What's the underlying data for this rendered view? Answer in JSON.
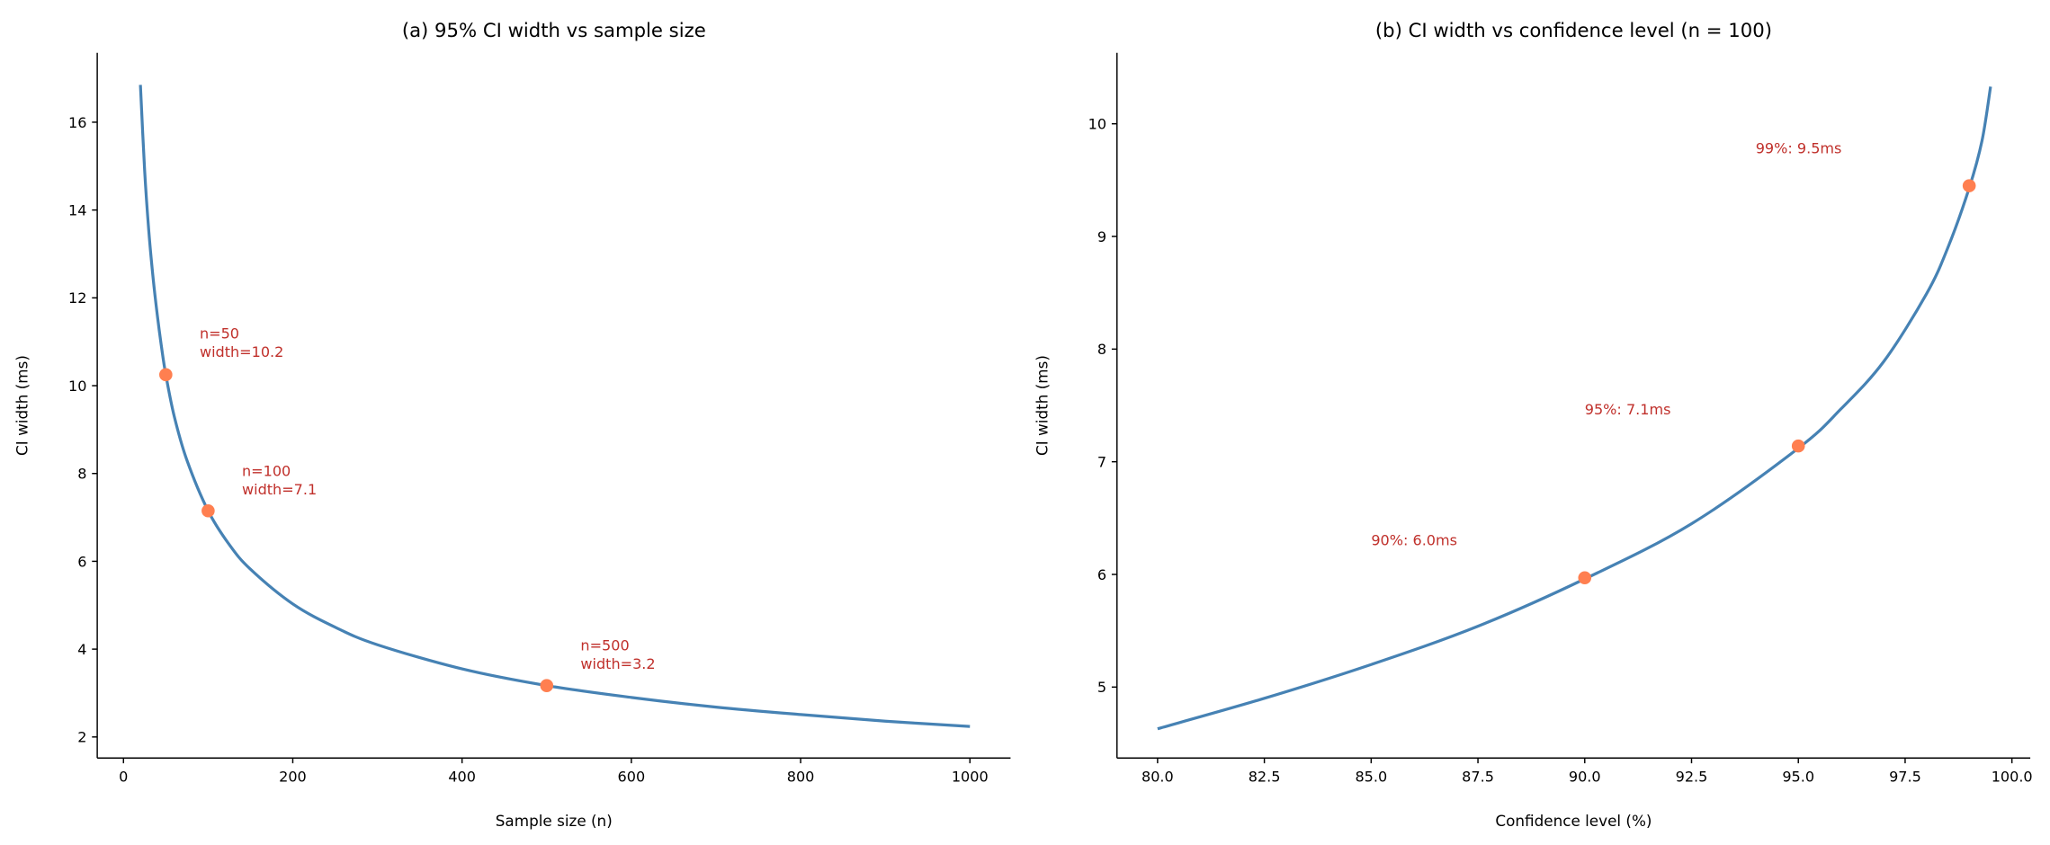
{
  "colors": {
    "line": "#4682b4",
    "marker": "#ff7f50",
    "annotation": "#c0302b"
  },
  "chart_data": [
    {
      "type": "line",
      "title": "(a) 95% CI width vs sample size",
      "xlabel": "Sample size (n)",
      "ylabel": "CI width (ms)",
      "xlim": [
        -31,
        1048
      ],
      "ylim": [
        1.52,
        17.58
      ],
      "xticks": [
        0,
        200,
        400,
        600,
        800,
        1000
      ],
      "yticks": [
        2,
        4,
        6,
        8,
        10,
        12,
        14,
        16
      ],
      "grid": false,
      "series": [
        {
          "x": [
            20,
            25,
            30,
            35,
            40,
            45,
            50,
            60,
            75,
            100,
            125,
            150,
            200,
            250,
            300,
            400,
            500,
            600,
            700,
            800,
            900,
            1000
          ],
          "y": [
            16.85,
            14.9,
            13.5,
            12.45,
            11.6,
            10.87,
            10.25,
            9.3,
            8.3,
            7.15,
            6.38,
            5.82,
            5.03,
            4.5,
            4.1,
            3.55,
            3.17,
            2.9,
            2.68,
            2.51,
            2.36,
            2.24
          ]
        }
      ],
      "points": [
        {
          "x": 50,
          "y": 10.25,
          "label": [
            "n=50",
            "width=10.2"
          ],
          "text_at": [
            90,
            10.66
          ]
        },
        {
          "x": 100,
          "y": 7.15,
          "label": [
            "n=100",
            "width=7.1"
          ],
          "text_at": [
            140,
            7.52
          ]
        },
        {
          "x": 500,
          "y": 3.17,
          "label": [
            "n=500",
            "width=3.2"
          ],
          "text_at": [
            540,
            3.55
          ]
        }
      ]
    },
    {
      "type": "line",
      "title": "(b) CI width vs confidence level (n = 100)",
      "xlabel": "Confidence level (%)",
      "ylabel": "CI width (ms)",
      "xlim": [
        79.05,
        100.43
      ],
      "ylim": [
        4.37,
        10.63
      ],
      "xticks": [
        "80.0",
        "82.5",
        "85.0",
        "87.5",
        "90.0",
        "92.5",
        "95.0",
        "97.5",
        "100.0"
      ],
      "yticks": [
        5,
        6,
        7,
        8,
        9,
        10
      ],
      "grid": false,
      "series": [
        {
          "x": [
            80,
            82.5,
            85,
            87.5,
            90,
            92.5,
            95,
            96,
            97,
            98,
            98.5,
            99,
            99.3,
            99.5
          ],
          "y": [
            4.63,
            4.9,
            5.2,
            5.54,
            5.96,
            6.45,
            7.12,
            7.47,
            7.89,
            8.49,
            8.9,
            9.43,
            9.85,
            10.33
          ]
        }
      ],
      "points": [
        {
          "x": 90,
          "y": 5.97,
          "label": [
            "90%: 6.0ms"
          ],
          "text_at": [
            85,
            6.26
          ]
        },
        {
          "x": 95,
          "y": 7.14,
          "label": [
            "95%: 7.1ms"
          ],
          "text_at": [
            90,
            7.42
          ]
        },
        {
          "x": 99,
          "y": 9.45,
          "label": [
            "99%: 9.5ms"
          ],
          "text_at": [
            94,
            9.74
          ]
        }
      ]
    }
  ]
}
